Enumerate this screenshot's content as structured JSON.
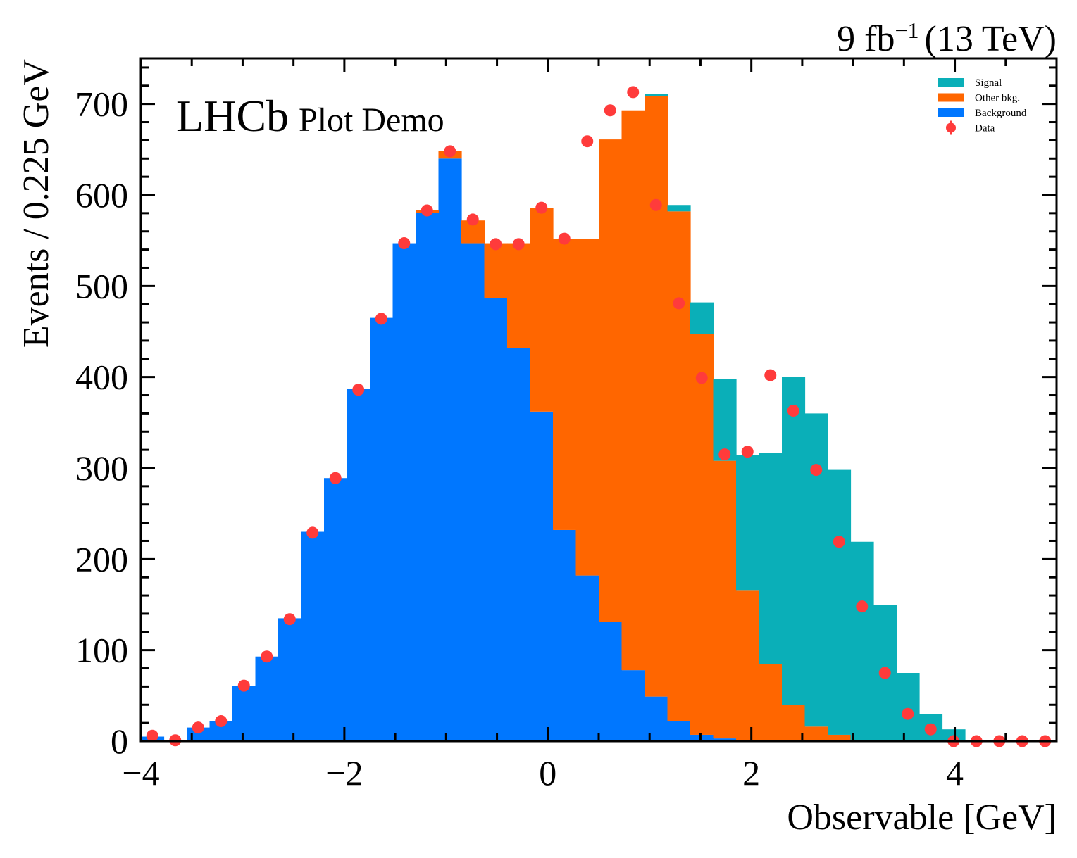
{
  "chart_data": {
    "type": "bar",
    "stacked": true,
    "x_label": "Observable [GeV]",
    "y_label": "Events / 0.225 GeV",
    "luminosity": "9 fb",
    "luminosity_exp": "−1",
    "energy": "(13 TeV)",
    "experiment": "LHCb",
    "subtitle": "Plot Demo",
    "xlim": [
      -4,
      5
    ],
    "ylim": [
      0,
      750
    ],
    "x_ticks": [
      -4,
      -2,
      0,
      2,
      4
    ],
    "x_tick_labels": [
      "−4",
      "−2",
      "0",
      "2",
      "4"
    ],
    "y_ticks": [
      0,
      100,
      200,
      300,
      400,
      500,
      600,
      700
    ],
    "y_tick_labels": [
      "0",
      "100",
      "200",
      "300",
      "400",
      "500",
      "600",
      "700"
    ],
    "bin_width": 0.225,
    "bin_edges_start": -4.0,
    "n_bins": 40,
    "series": [
      {
        "name": "Background",
        "color": "#0077ff",
        "values": [
          5,
          0,
          15,
          22,
          61,
          93,
          135,
          230,
          289,
          387,
          465,
          547,
          580,
          640,
          547,
          487,
          432,
          362,
          232,
          182,
          131,
          78,
          49,
          22,
          7,
          3,
          0,
          0,
          0,
          0,
          0,
          0,
          0,
          0,
          0,
          0,
          0,
          0,
          0,
          0
        ]
      },
      {
        "name": "Other bkg.",
        "color": "#ff6600",
        "values": [
          0,
          0,
          0,
          0,
          0,
          0,
          0,
          0,
          0,
          0,
          0,
          0,
          3,
          8,
          25,
          60,
          115,
          224,
          320,
          370,
          530,
          615,
          660,
          560,
          440,
          305,
          166,
          85,
          40,
          16,
          7,
          0,
          0,
          0,
          0,
          0,
          0,
          0,
          0,
          0
        ]
      },
      {
        "name": "Signal",
        "color": "#0aafb8",
        "values": [
          0,
          0,
          0,
          0,
          0,
          0,
          0,
          0,
          0,
          0,
          0,
          0,
          0,
          0,
          0,
          0,
          0,
          0,
          0,
          0,
          0,
          0,
          2,
          7,
          35,
          90,
          148,
          232,
          360,
          344,
          291,
          219,
          150,
          75,
          30,
          13,
          0,
          0,
          0,
          0
        ]
      }
    ],
    "data_points": {
      "name": "Data",
      "color": "#ff3b3b",
      "x": [
        -3.8875,
        -3.6625,
        -3.4375,
        -3.2125,
        -2.9875,
        -2.7625,
        -2.5375,
        -2.3125,
        -2.0875,
        -1.8625,
        -1.6375,
        -1.4125,
        -1.1875,
        -0.9625,
        -0.7375,
        -0.5125,
        -0.2875,
        -0.0625,
        0.1625,
        0.3875,
        0.6125,
        0.8375,
        1.0625,
        1.2875,
        1.5125,
        1.7375,
        1.9625,
        2.1875,
        2.4125,
        2.6375,
        2.8625,
        3.0875,
        3.3125,
        3.5375,
        3.7625,
        3.9875,
        4.2125,
        4.4375,
        4.6625,
        4.8875
      ],
      "y": [
        6,
        1,
        15,
        22,
        61,
        93,
        134,
        229,
        289,
        386,
        464,
        547,
        583,
        648,
        573,
        546,
        546,
        586,
        552,
        659,
        693,
        713,
        589,
        481,
        399,
        315,
        318,
        402,
        363,
        298,
        219,
        148,
        75,
        30,
        13,
        0,
        0,
        0,
        0,
        0
      ]
    },
    "legend": {
      "position": "top-right",
      "entries": [
        "Signal",
        "Other bkg.",
        "Background",
        "Data"
      ]
    }
  }
}
